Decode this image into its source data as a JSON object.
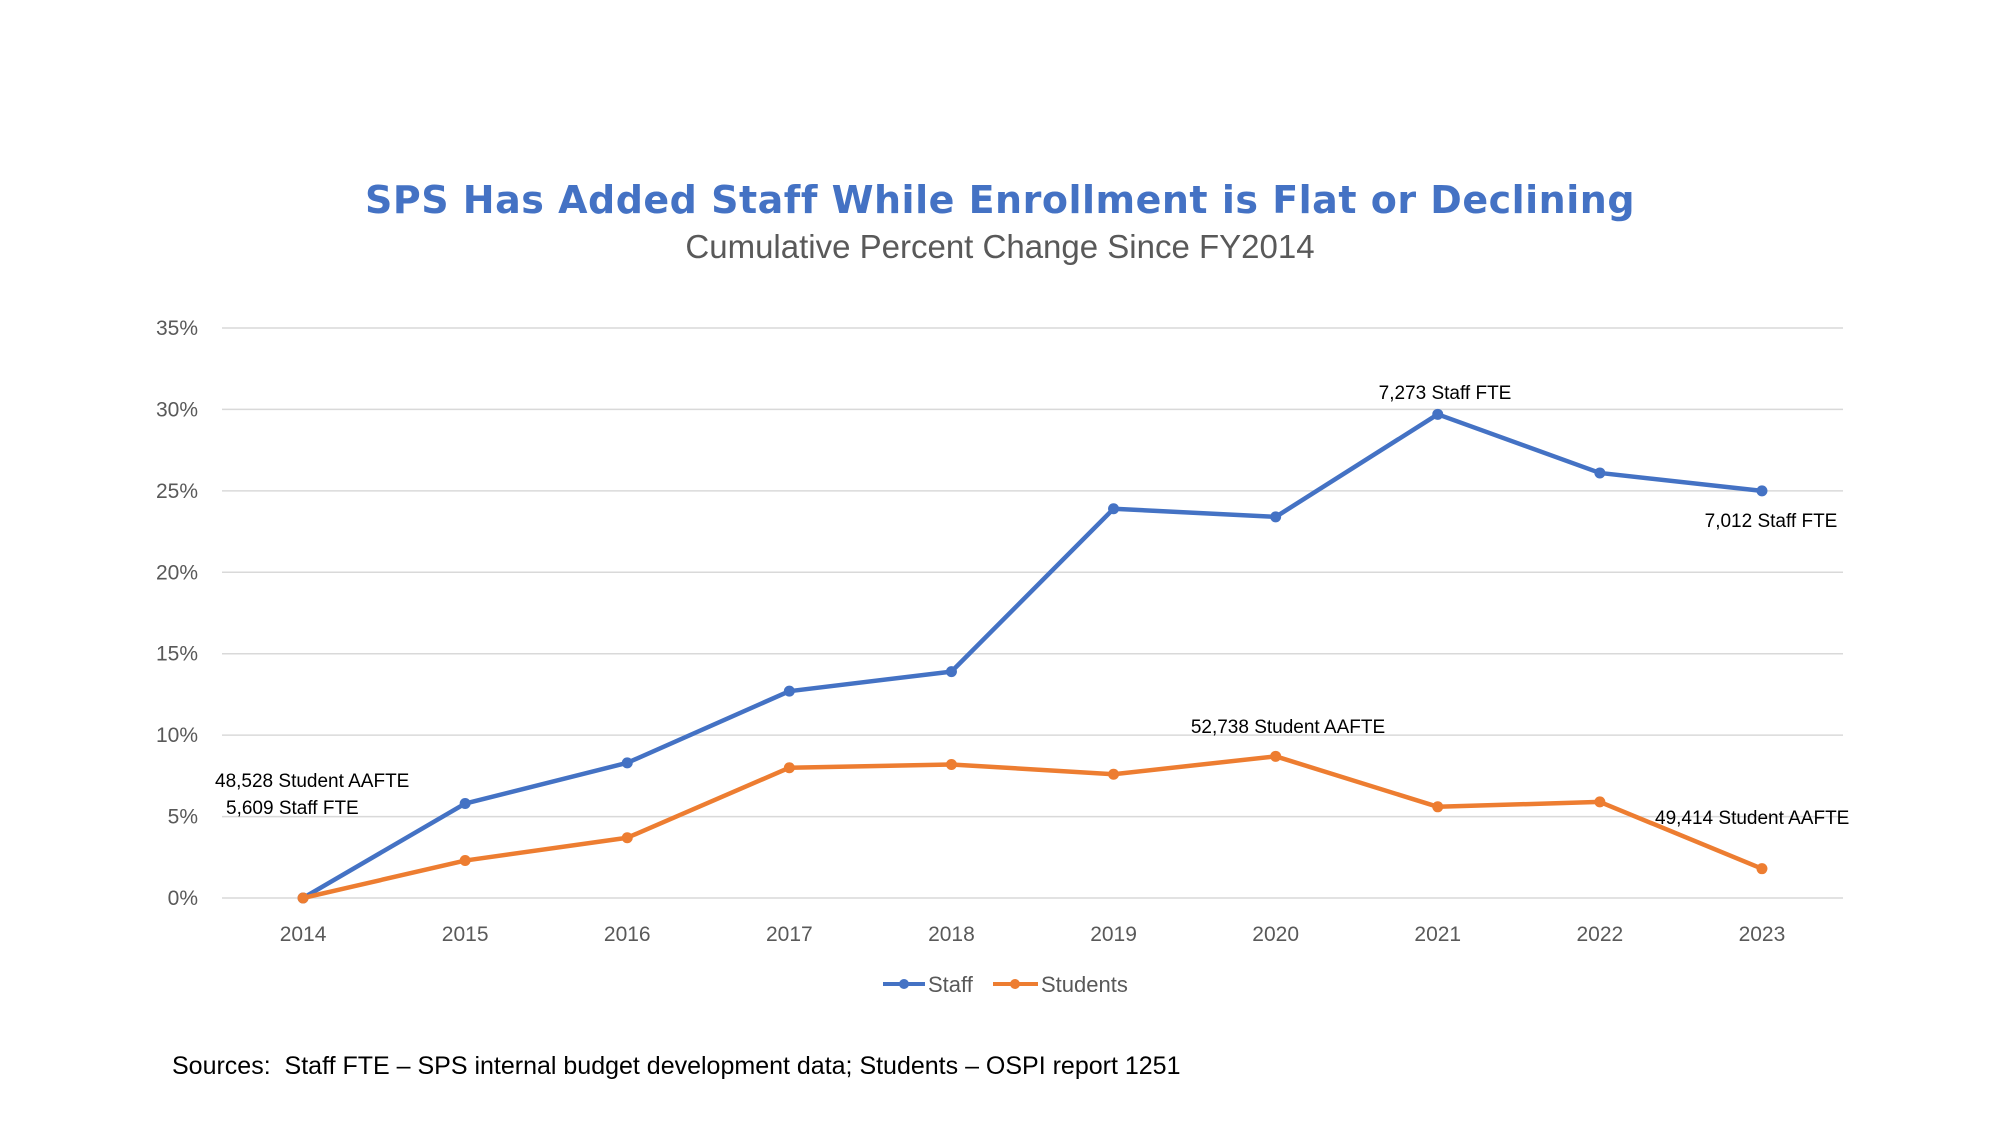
{
  "chart_data": {
    "type": "line",
    "title": "SPS Has Added Staff While Enrollment is Flat or Declining",
    "subtitle": "Cumulative Percent Change Since FY2014",
    "xlabel": "",
    "ylabel": "",
    "x": [
      "2014",
      "2015",
      "2016",
      "2017",
      "2018",
      "2019",
      "2020",
      "2021",
      "2022",
      "2023"
    ],
    "ylim": [
      0,
      35
    ],
    "yticks": [
      0,
      5,
      10,
      15,
      20,
      25,
      30,
      35
    ],
    "ytick_labels": [
      "0%",
      "5%",
      "10%",
      "15%",
      "20%",
      "25%",
      "30%",
      "35%"
    ],
    "grid": true,
    "legend_position": "bottom",
    "series": [
      {
        "name": "Staff",
        "color": "#4472C4",
        "values": [
          0,
          5.8,
          8.3,
          12.7,
          13.9,
          23.9,
          23.4,
          29.7,
          26.1,
          25.0
        ]
      },
      {
        "name": "Students",
        "color": "#ED7D31",
        "values": [
          0,
          2.3,
          3.7,
          8.0,
          8.2,
          7.6,
          8.7,
          5.6,
          5.9,
          1.8
        ]
      }
    ],
    "annotations": [
      {
        "text": "48,528 Student AAFTE",
        "series": "Students",
        "x": "2014"
      },
      {
        "text": "5,609 Staff FTE",
        "series": "Staff",
        "x": "2014"
      },
      {
        "text": "7,273 Staff FTE",
        "series": "Staff",
        "x": "2021"
      },
      {
        "text": "7,012 Staff FTE",
        "series": "Staff",
        "x": "2023"
      },
      {
        "text": "52,738 Student AAFTE",
        "series": "Students",
        "x": "2020"
      },
      {
        "text": "49,414 Student AAFTE",
        "series": "Students",
        "x": "2023"
      }
    ]
  },
  "footer": {
    "sources": "Sources:  Staff FTE – SPS internal budget development data; Students – OSPI report 1251"
  }
}
